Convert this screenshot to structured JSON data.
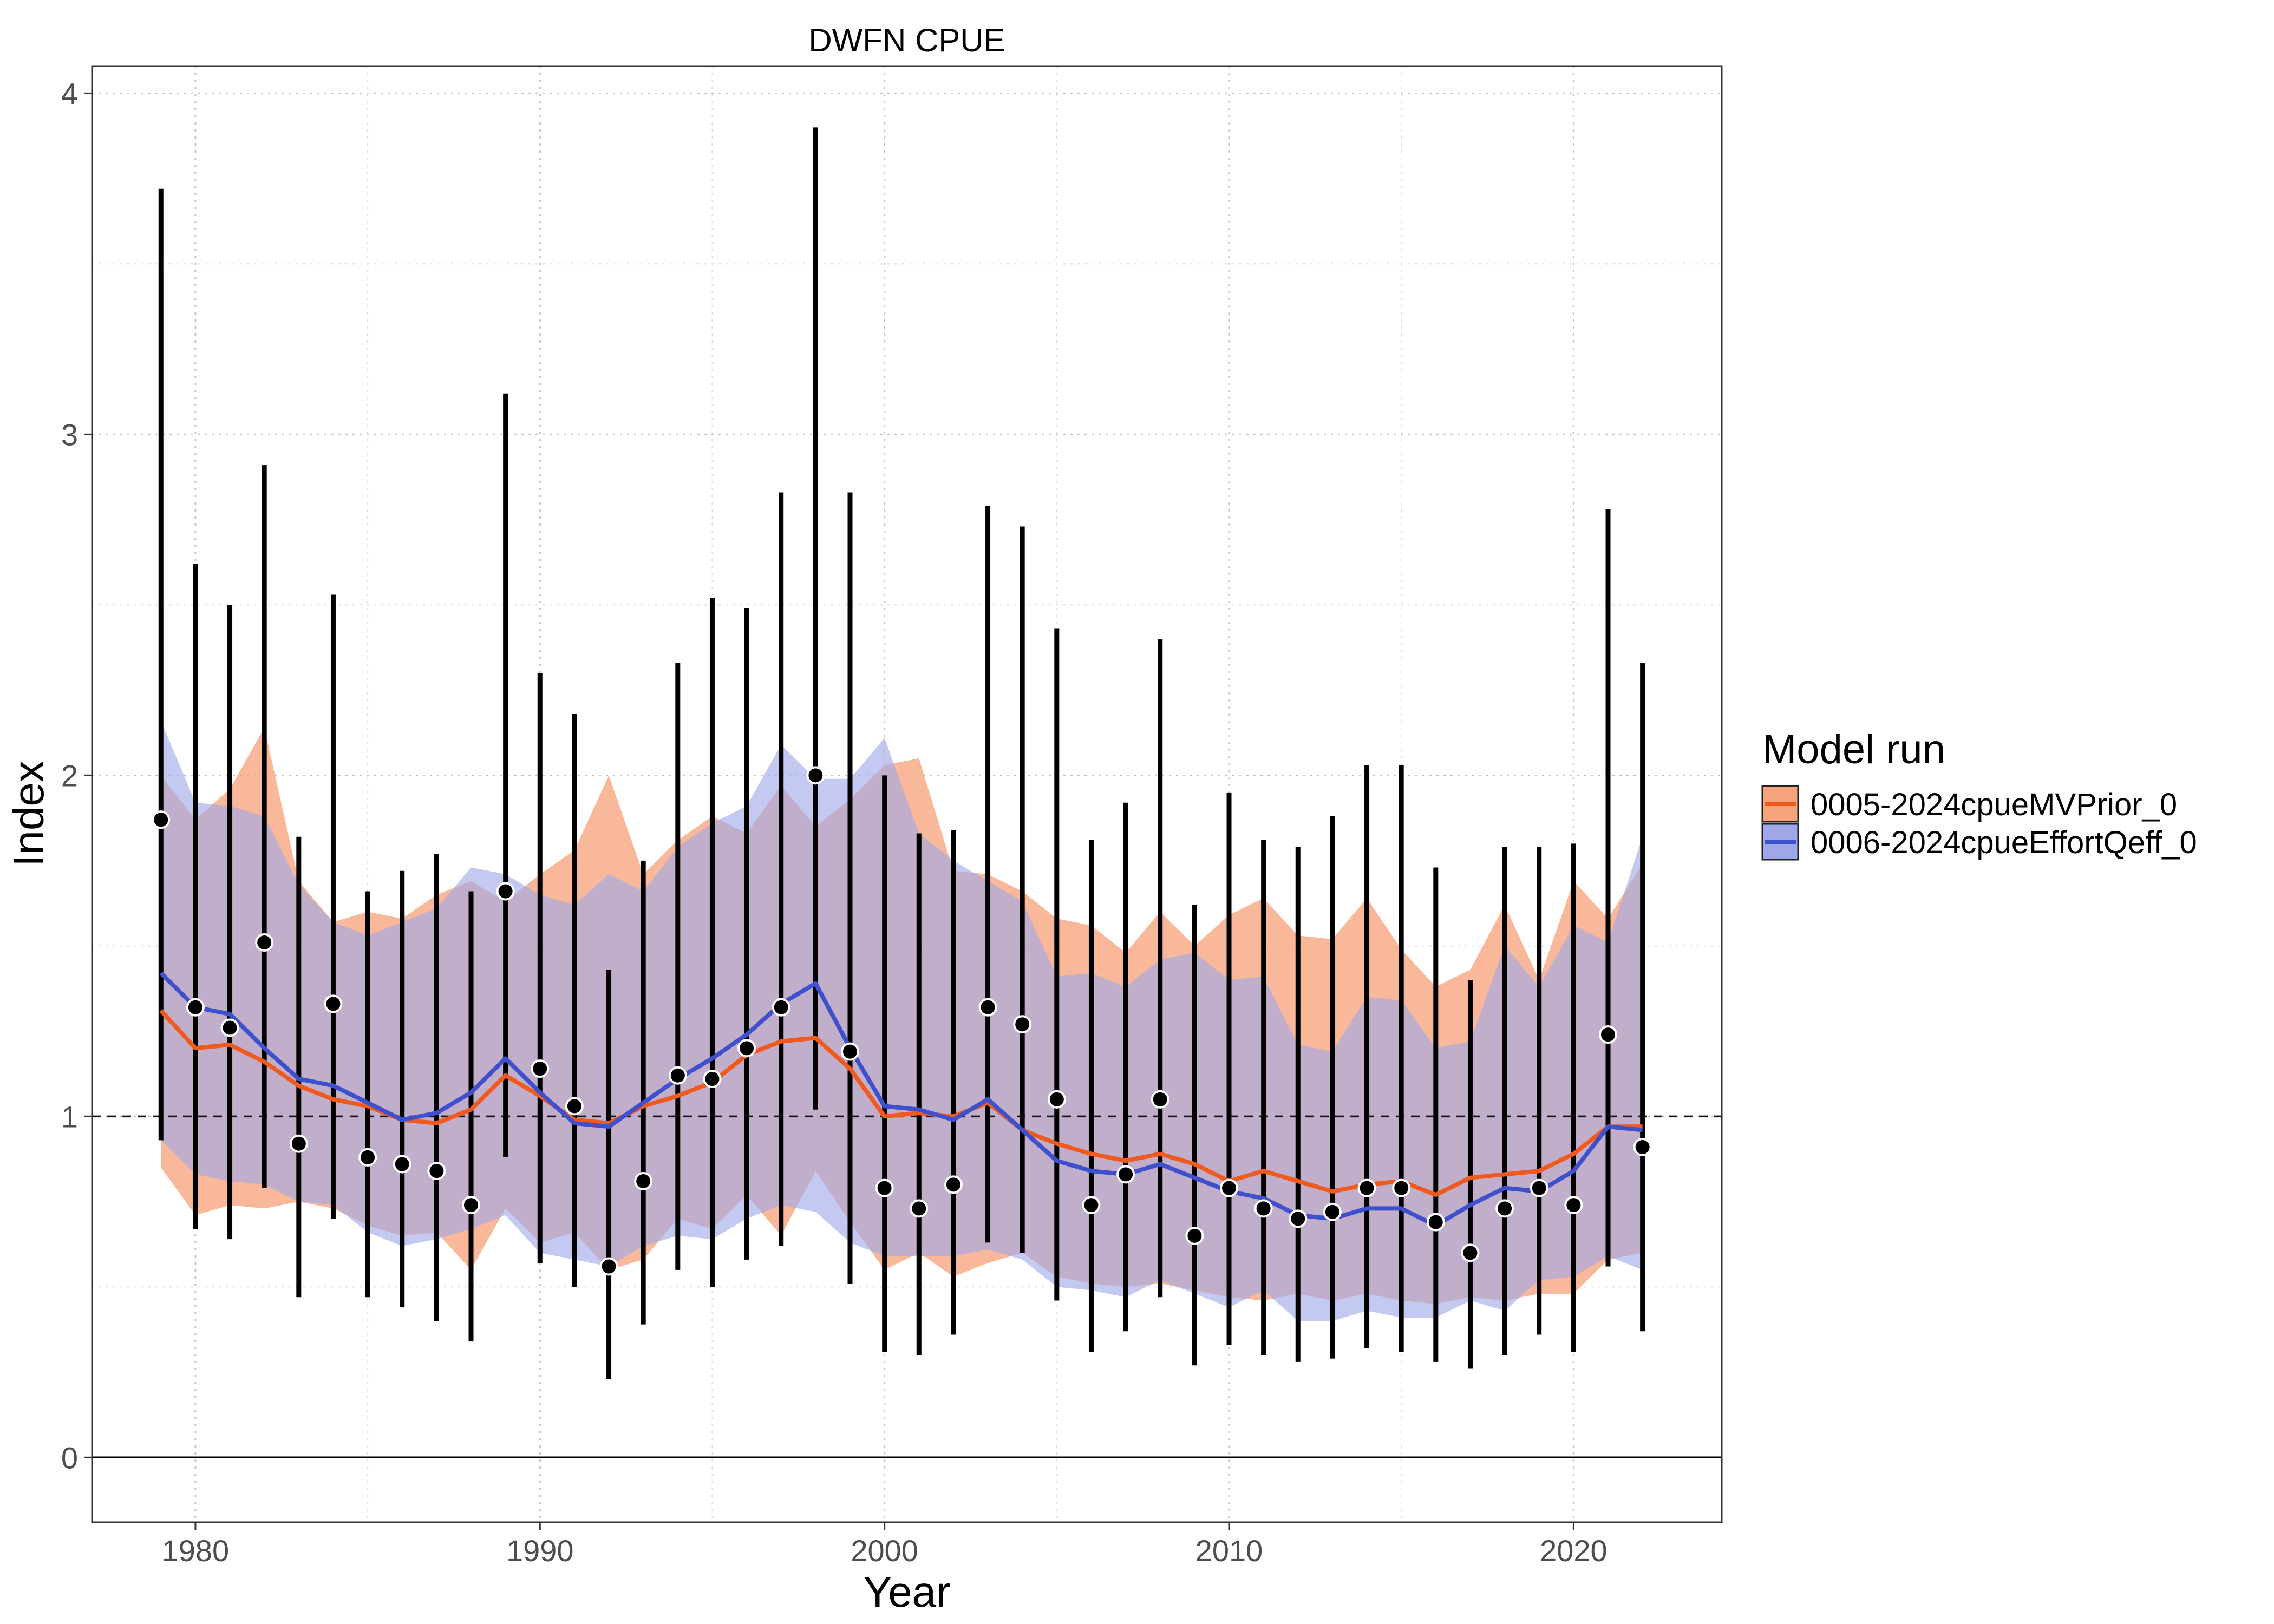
{
  "chart_data": {
    "type": "line",
    "title": "DWFN CPUE",
    "xlabel": "Year",
    "ylabel": "Index",
    "xlim": [
      1977,
      2024.3
    ],
    "ylim": [
      -0.19,
      4.08
    ],
    "x_ticks": [
      1980,
      1990,
      2000,
      2010,
      2020
    ],
    "y_ticks": [
      0,
      1,
      2,
      3,
      4
    ],
    "x_minor_ticks": [
      1985,
      1995,
      2005,
      2015
    ],
    "y_minor_ticks": [
      0.5,
      1.5,
      2.5,
      3.5
    ],
    "reference_line_dashed": 1,
    "reference_line_solid": 0,
    "grid": "dotted",
    "legend_position": "right",
    "legend_title": "Model run",
    "observations": {
      "x": [
        1979,
        1980,
        1981,
        1982,
        1983,
        1984,
        1985,
        1986,
        1987,
        1988,
        1989,
        1990,
        1991,
        1992,
        1993,
        1994,
        1995,
        1996,
        1997,
        1998,
        1999,
        2000,
        2001,
        2002,
        2003,
        2004,
        2005,
        2006,
        2007,
        2008,
        2009,
        2010,
        2011,
        2012,
        2013,
        2014,
        2015,
        2016,
        2017,
        2018,
        2019,
        2020,
        2021,
        2022
      ],
      "y": [
        1.87,
        1.32,
        1.26,
        1.51,
        0.92,
        1.33,
        0.88,
        0.86,
        0.84,
        0.74,
        1.66,
        1.14,
        1.03,
        0.56,
        0.81,
        1.12,
        1.11,
        1.2,
        1.32,
        2.0,
        1.19,
        0.79,
        0.73,
        0.8,
        1.32,
        1.27,
        1.05,
        0.74,
        0.83,
        1.05,
        0.65,
        0.79,
        0.73,
        0.7,
        0.72,
        0.79,
        0.79,
        0.69,
        0.6,
        0.73,
        0.79,
        0.74,
        1.24,
        0.91
      ],
      "lower": [
        0.93,
        0.67,
        0.64,
        0.79,
        0.47,
        0.7,
        0.47,
        0.44,
        0.4,
        0.34,
        0.88,
        0.57,
        0.5,
        0.23,
        0.39,
        0.55,
        0.5,
        0.58,
        0.62,
        1.02,
        0.51,
        0.31,
        0.3,
        0.36,
        0.63,
        0.6,
        0.46,
        0.31,
        0.37,
        0.47,
        0.27,
        0.33,
        0.3,
        0.28,
        0.29,
        0.32,
        0.31,
        0.28,
        0.26,
        0.3,
        0.36,
        0.31,
        0.56,
        0.37
      ],
      "upper": [
        3.72,
        2.62,
        2.5,
        2.91,
        1.82,
        2.53,
        1.66,
        1.72,
        1.77,
        1.66,
        3.12,
        2.3,
        2.18,
        1.43,
        1.75,
        2.33,
        2.52,
        2.49,
        2.83,
        3.9,
        2.83,
        2.0,
        1.83,
        1.84,
        2.79,
        2.73,
        2.43,
        1.81,
        1.92,
        2.4,
        1.62,
        1.95,
        1.81,
        1.79,
        1.88,
        2.03,
        2.03,
        1.73,
        1.4,
        1.79,
        1.79,
        1.8,
        2.78,
        2.33
      ]
    },
    "series": [
      {
        "name": "0005-2024cpueMVPrior_0",
        "color": "#F05A1E",
        "fill": "#F7A47C",
        "x": [
          1979,
          1980,
          1981,
          1982,
          1983,
          1984,
          1985,
          1986,
          1987,
          1988,
          1989,
          1990,
          1991,
          1992,
          1993,
          1994,
          1995,
          1996,
          1997,
          1998,
          1999,
          2000,
          2001,
          2002,
          2003,
          2004,
          2005,
          2006,
          2007,
          2008,
          2009,
          2010,
          2011,
          2012,
          2013,
          2014,
          2015,
          2016,
          2017,
          2018,
          2019,
          2020,
          2021,
          2022
        ],
        "values": [
          1.31,
          1.2,
          1.21,
          1.16,
          1.09,
          1.05,
          1.03,
          0.99,
          0.98,
          1.02,
          1.12,
          1.06,
          0.99,
          0.98,
          1.03,
          1.06,
          1.1,
          1.18,
          1.22,
          1.23,
          1.14,
          1.0,
          1.01,
          1.0,
          1.04,
          0.96,
          0.92,
          0.89,
          0.87,
          0.89,
          0.86,
          0.81,
          0.84,
          0.81,
          0.78,
          0.8,
          0.81,
          0.77,
          0.82,
          0.83,
          0.84,
          0.89,
          0.97,
          0.97
        ],
        "lower": [
          0.85,
          0.71,
          0.74,
          0.73,
          0.75,
          0.73,
          0.68,
          0.65,
          0.66,
          0.55,
          0.73,
          0.63,
          0.66,
          0.55,
          0.58,
          0.7,
          0.67,
          0.77,
          0.65,
          0.84,
          0.69,
          0.55,
          0.6,
          0.53,
          0.57,
          0.6,
          0.53,
          0.51,
          0.5,
          0.51,
          0.49,
          0.47,
          0.46,
          0.48,
          0.46,
          0.48,
          0.46,
          0.45,
          0.47,
          0.46,
          0.48,
          0.48,
          0.58,
          0.6
        ],
        "upper": [
          2.0,
          1.87,
          1.96,
          2.14,
          1.69,
          1.57,
          1.6,
          1.58,
          1.65,
          1.69,
          1.63,
          1.71,
          1.78,
          2.0,
          1.71,
          1.81,
          1.88,
          1.83,
          1.97,
          1.85,
          1.93,
          2.03,
          2.05,
          1.72,
          1.71,
          1.66,
          1.58,
          1.56,
          1.48,
          1.6,
          1.5,
          1.59,
          1.64,
          1.53,
          1.52,
          1.64,
          1.49,
          1.38,
          1.43,
          1.62,
          1.4,
          1.69,
          1.58,
          1.74
        ]
      },
      {
        "name": "0006-2024cpueEffortQeff_0",
        "color": "#3F50CC",
        "fill": "#9EA8E8",
        "x": [
          1979,
          1980,
          1981,
          1982,
          1983,
          1984,
          1985,
          1986,
          1987,
          1988,
          1989,
          1990,
          1991,
          1992,
          1993,
          1994,
          1995,
          1996,
          1997,
          1998,
          1999,
          2000,
          2001,
          2002,
          2003,
          2004,
          2005,
          2006,
          2007,
          2008,
          2009,
          2010,
          2011,
          2012,
          2013,
          2014,
          2015,
          2016,
          2017,
          2018,
          2019,
          2020,
          2021,
          2022
        ],
        "values": [
          1.42,
          1.32,
          1.3,
          1.2,
          1.11,
          1.09,
          1.04,
          0.99,
          1.01,
          1.07,
          1.17,
          1.07,
          0.98,
          0.97,
          1.04,
          1.11,
          1.17,
          1.24,
          1.33,
          1.39,
          1.2,
          1.03,
          1.02,
          0.99,
          1.05,
          0.96,
          0.87,
          0.84,
          0.83,
          0.86,
          0.82,
          0.78,
          0.76,
          0.71,
          0.7,
          0.73,
          0.73,
          0.68,
          0.74,
          0.79,
          0.78,
          0.84,
          0.97,
          0.96
        ],
        "lower": [
          0.93,
          0.83,
          0.81,
          0.8,
          0.75,
          0.74,
          0.66,
          0.62,
          0.64,
          0.67,
          0.71,
          0.6,
          0.58,
          0.56,
          0.62,
          0.65,
          0.64,
          0.7,
          0.74,
          0.72,
          0.63,
          0.59,
          0.59,
          0.59,
          0.61,
          0.58,
          0.5,
          0.49,
          0.47,
          0.52,
          0.48,
          0.44,
          0.49,
          0.4,
          0.4,
          0.43,
          0.41,
          0.41,
          0.46,
          0.43,
          0.52,
          0.53,
          0.59,
          0.55
        ],
        "upper": [
          2.16,
          1.92,
          1.91,
          1.88,
          1.68,
          1.57,
          1.53,
          1.57,
          1.61,
          1.73,
          1.71,
          1.65,
          1.62,
          1.71,
          1.66,
          1.79,
          1.86,
          1.91,
          2.09,
          1.99,
          1.99,
          2.11,
          1.83,
          1.75,
          1.69,
          1.63,
          1.41,
          1.42,
          1.38,
          1.46,
          1.48,
          1.4,
          1.41,
          1.21,
          1.19,
          1.35,
          1.34,
          1.2,
          1.22,
          1.5,
          1.38,
          1.56,
          1.51,
          1.82
        ]
      }
    ]
  }
}
